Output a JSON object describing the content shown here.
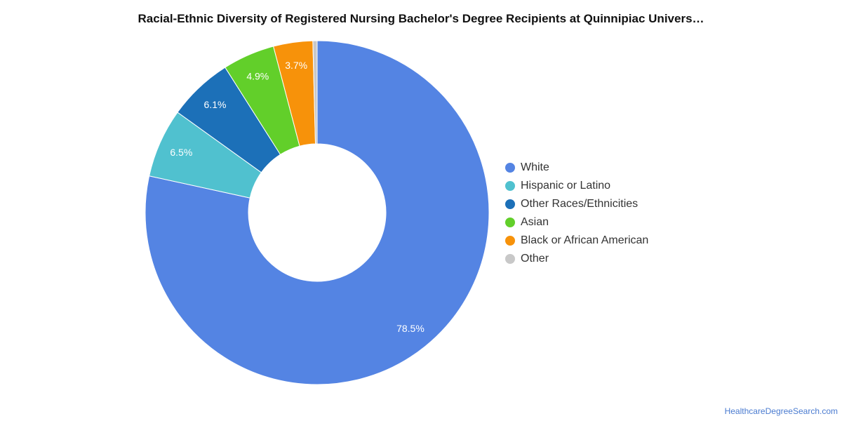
{
  "chart_data": {
    "type": "pie",
    "title": "Racial-Ethnic Diversity of Registered Nursing Bachelor's Degree Recipients at Quinnipiac Univers…",
    "donut": true,
    "legend_position": "right",
    "series": [
      {
        "name": "White",
        "value": 78.5,
        "label": "78.5%",
        "color": "#5484e3"
      },
      {
        "name": "Hispanic or Latino",
        "value": 6.5,
        "label": "6.5%",
        "color": "#50c1cf"
      },
      {
        "name": "Other Races/Ethnicities",
        "value": 6.1,
        "label": "6.1%",
        "color": "#1c70b8"
      },
      {
        "name": "Asian",
        "value": 4.9,
        "label": "4.9%",
        "color": "#62cf2a"
      },
      {
        "name": "Black or African American",
        "value": 3.7,
        "label": "3.7%",
        "color": "#f7920a"
      },
      {
        "name": "Other",
        "value": 0.4,
        "label": "",
        "color": "#c8c8c8"
      }
    ]
  },
  "footer": {
    "credit": "HealthcareDegreeSearch.com"
  }
}
